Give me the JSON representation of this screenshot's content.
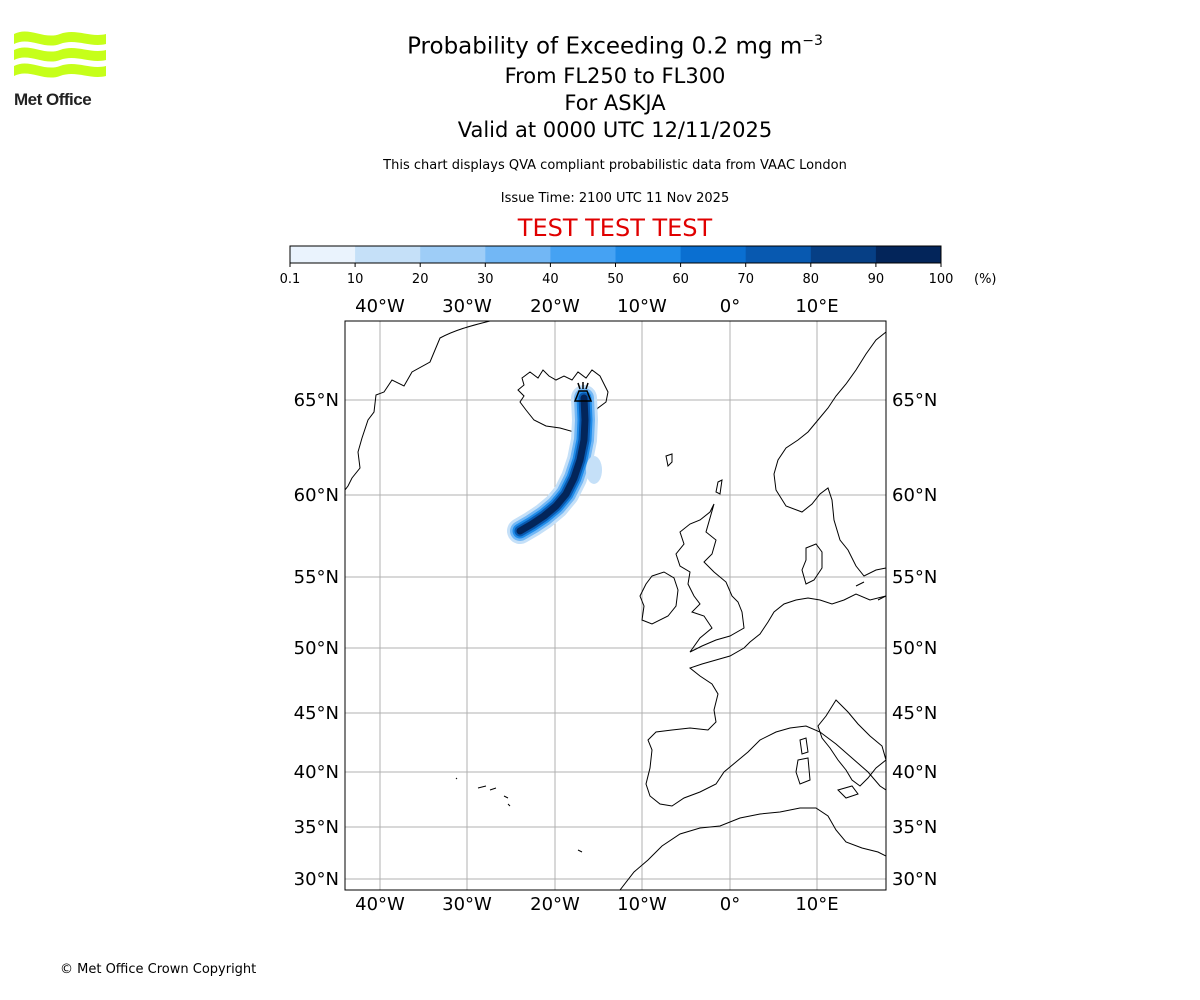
{
  "logo": {
    "text": "Met Office",
    "color": "#c6ff1a"
  },
  "title": {
    "main_prefix": "Probability of Exceeding 0.2 mg m",
    "main_sup": "−3",
    "level": "From FL250 to FL300",
    "volcano": "For ASKJA",
    "valid": "Valid at 0000 UTC 12/11/2025",
    "description": "This chart displays QVA compliant probabilistic data from VAAC London",
    "issue": "Issue Time: 2100 UTC 11 Nov 2025",
    "test": "TEST TEST TEST"
  },
  "colorbar": {
    "ticks": [
      "0.1",
      "10",
      "20",
      "30",
      "40",
      "50",
      "60",
      "70",
      "80",
      "90",
      "100"
    ],
    "unit": "(%)",
    "colors": [
      "#eaf3fd",
      "#c5e0f8",
      "#9ecdf7",
      "#72b7f5",
      "#45a2f3",
      "#1f8be8",
      "#0a6fd1",
      "#0859b0",
      "#063f85",
      "#03255a"
    ]
  },
  "map": {
    "lon_labels": [
      "40°W",
      "30°W",
      "20°W",
      "10°W",
      "0°",
      "10°E"
    ],
    "lat_labels": [
      "65°N",
      "60°N",
      "55°N",
      "50°N",
      "45°N",
      "40°N",
      "35°N",
      "30°N"
    ],
    "volcano_icon": "volcano-icon"
  },
  "footer": "© Met Office Crown Copyright"
}
